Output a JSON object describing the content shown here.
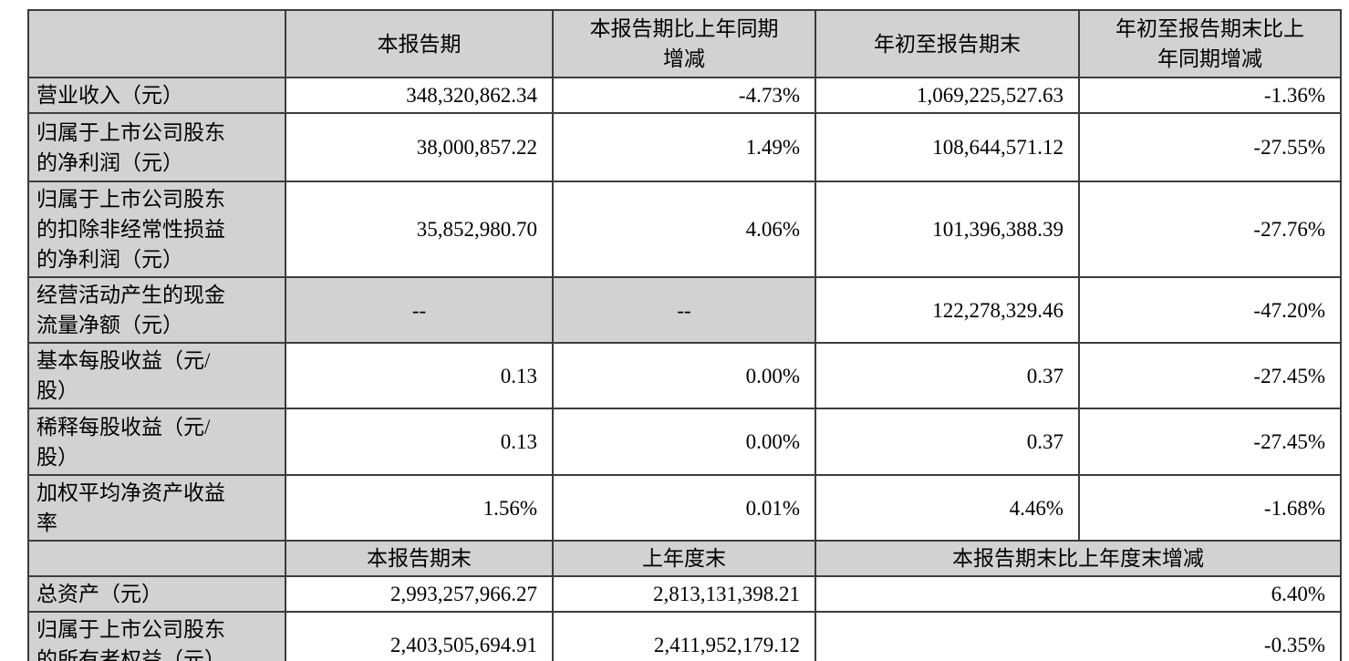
{
  "table": {
    "gray_color": "#d2d2d2",
    "border_color": "#3c3c3c",
    "section1": {
      "column_headers": [
        "",
        "本报告期",
        "本报告期比上年同期\n增减",
        "年初至报告期末",
        "年初至报告期末比上\n年同期增减"
      ],
      "rows": [
        {
          "label": "营业收入（元）",
          "values": [
            "348,320,862.34",
            "-4.73%",
            "1,069,225,527.63",
            "-1.36%"
          ]
        },
        {
          "label": "归属于上市公司股东\n的净利润（元）",
          "values": [
            "38,000,857.22",
            "1.49%",
            "108,644,571.12",
            "-27.55%"
          ]
        },
        {
          "label": "归属于上市公司股东\n的扣除非经常性损益\n的净利润（元）",
          "values": [
            "35,852,980.70",
            "4.06%",
            "101,396,388.39",
            "-27.76%"
          ]
        },
        {
          "label": "经营活动产生的现金\n流量净额（元）",
          "values": [
            "--",
            "--",
            "122,278,329.46",
            "-47.20%"
          ]
        },
        {
          "label": "基本每股收益（元/\n股）",
          "values": [
            "0.13",
            "0.00%",
            "0.37",
            "-27.45%"
          ]
        },
        {
          "label": "稀释每股收益（元/\n股）",
          "values": [
            "0.13",
            "0.00%",
            "0.37",
            "-27.45%"
          ]
        },
        {
          "label": "加权平均净资产收益\n率",
          "values": [
            "1.56%",
            "0.01%",
            "4.46%",
            "-1.68%"
          ]
        }
      ]
    },
    "section2": {
      "column_headers": [
        "",
        "本报告期末",
        "上年度末",
        "本报告期末比上年度末增减"
      ],
      "rows": [
        {
          "label": "总资产（元）",
          "values": [
            "2,993,257,966.27",
            "2,813,131,398.21",
            "6.40%"
          ]
        },
        {
          "label": "归属于上市公司股东\n的所有者权益（元）",
          "values": [
            "2,403,505,694.91",
            "2,411,952,179.12",
            "-0.35%"
          ]
        }
      ]
    }
  }
}
